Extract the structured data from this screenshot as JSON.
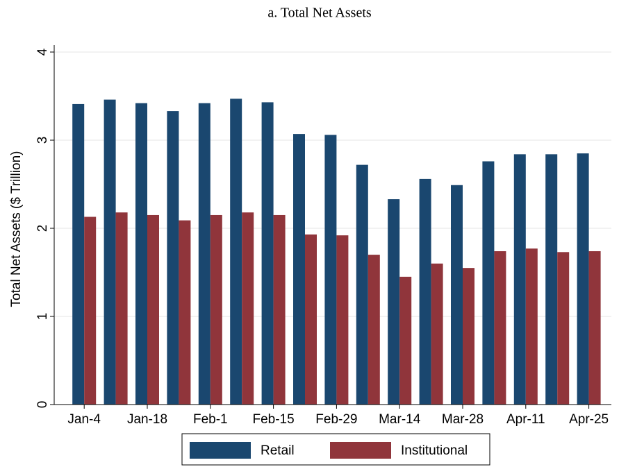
{
  "chart_data": {
    "type": "bar",
    "title": "a. Total Net Assets",
    "y_label": "Total Net Assets ($ Trillion)",
    "categories": [
      "Jan-4",
      null,
      "Jan-18",
      null,
      "Feb-1",
      null,
      "Feb-15",
      null,
      "Feb-29",
      null,
      "Mar-14",
      null,
      "Mar-28",
      null,
      "Apr-11",
      null,
      "Apr-25"
    ],
    "series": [
      {
        "name": "Retail",
        "color": "#1a476f",
        "values": [
          3.41,
          3.46,
          3.42,
          3.33,
          3.42,
          3.47,
          3.43,
          3.07,
          3.06,
          2.72,
          2.33,
          2.56,
          2.49,
          2.76,
          2.84,
          2.84,
          2.85
        ]
      },
      {
        "name": "Institutional",
        "color": "#90353b",
        "values": [
          2.13,
          2.18,
          2.15,
          2.09,
          2.15,
          2.18,
          2.15,
          1.93,
          1.92,
          1.7,
          1.45,
          1.6,
          1.55,
          1.74,
          1.77,
          1.73,
          1.74
        ]
      }
    ],
    "ylim": [
      0,
      4
    ],
    "yticks": [
      0,
      1,
      2,
      3,
      4
    ],
    "grid": true,
    "legend": "bottom"
  }
}
